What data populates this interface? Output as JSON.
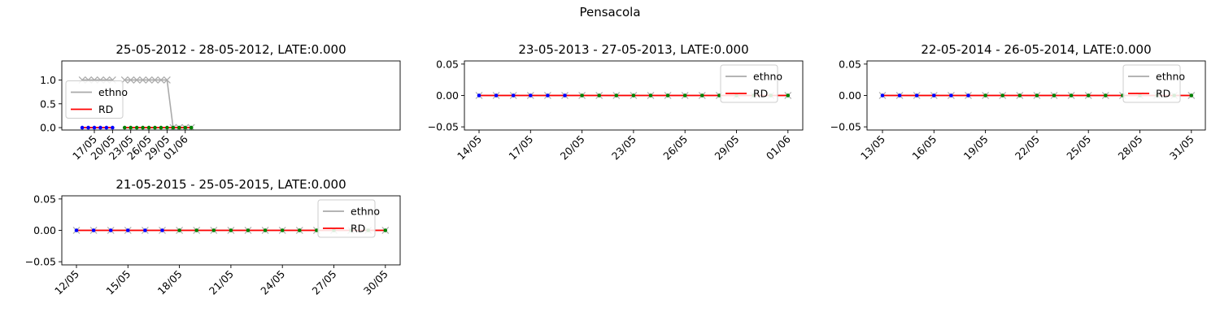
{
  "figure": {
    "title": "Pensacola"
  },
  "chart_data": [
    {
      "type": "line",
      "title": "25-05-2012 - 28-05-2012, LATE:0.000",
      "x_tick_labels": [
        "17/05",
        "20/05",
        "23/05",
        "26/05",
        "29/05",
        "01/06"
      ],
      "y_tick_labels": [
        "0.0",
        "0.5",
        "1.0"
      ],
      "ylim": [
        -0.05,
        1.4
      ],
      "legend": {
        "placement": "center-left",
        "entries": [
          {
            "label": "ethno",
            "color": "#aaaaaa"
          },
          {
            "label": "RD",
            "color": "#ff0000"
          }
        ]
      },
      "series": [
        {
          "name": "ethno",
          "color": "#aaaaaa",
          "marker": "x",
          "x": [
            "15/05",
            "16/05",
            "17/05",
            "18/05",
            "19/05",
            "20/05",
            "22/05",
            "23/05",
            "24/05",
            "25/05",
            "26/05",
            "27/05",
            "28/05",
            "29/05",
            "30/05",
            "31/05",
            "01/06",
            "02/06"
          ],
          "y": [
            1,
            1,
            1,
            1,
            1,
            1,
            1,
            1,
            1,
            1,
            1,
            1,
            1,
            1,
            0,
            0,
            0,
            0
          ]
        },
        {
          "name": "RD",
          "color": "#ff0000",
          "marker": "dot",
          "x": [
            "15/05",
            "16/05",
            "17/05",
            "18/05",
            "19/05",
            "20/05",
            "22/05",
            "23/05",
            "24/05",
            "25/05",
            "26/05",
            "27/05",
            "28/05",
            "29/05",
            "30/05",
            "31/05",
            "01/06",
            "02/06"
          ],
          "y": [
            0,
            0,
            0,
            0,
            0,
            0,
            0,
            0,
            0,
            0,
            0,
            0,
            0,
            0,
            0,
            0,
            0,
            0
          ]
        }
      ]
    },
    {
      "type": "line",
      "title": "23-05-2013 - 27-05-2013, LATE:0.000",
      "x_tick_labels": [
        "14/05",
        "17/05",
        "20/05",
        "23/05",
        "26/05",
        "29/05",
        "01/06"
      ],
      "y_tick_labels": [
        "−0.05",
        "0.00",
        "0.05"
      ],
      "ylim": [
        -0.055,
        0.055
      ],
      "legend": {
        "placement": "upper-right",
        "entries": [
          {
            "label": "ethno",
            "color": "#aaaaaa"
          },
          {
            "label": "RD",
            "color": "#ff0000"
          }
        ]
      },
      "series": [
        {
          "name": "ethno",
          "color": "#aaaaaa",
          "marker": "x",
          "x": [
            "14/05",
            "15/05",
            "16/05",
            "17/05",
            "18/05",
            "19/05",
            "20/05",
            "21/05",
            "22/05",
            "23/05",
            "24/05",
            "25/05",
            "26/05",
            "27/05",
            "28/05",
            "29/05",
            "30/05",
            "31/05",
            "01/06"
          ],
          "y": [
            0,
            0,
            0,
            0,
            0,
            0,
            0,
            0,
            0,
            0,
            0,
            0,
            0,
            0,
            0,
            0,
            0,
            0,
            0
          ]
        },
        {
          "name": "RD",
          "color": "#ff0000",
          "marker": "dot",
          "x": [
            "14/05",
            "15/05",
            "16/05",
            "17/05",
            "18/05",
            "19/05",
            "20/05",
            "21/05",
            "22/05",
            "23/05",
            "24/05",
            "25/05",
            "26/05",
            "27/05",
            "28/05",
            "29/05",
            "30/05",
            "31/05",
            "01/06"
          ],
          "y": [
            0,
            0,
            0,
            0,
            0,
            0,
            0,
            0,
            0,
            0,
            0,
            0,
            0,
            0,
            0,
            0,
            0,
            0,
            0
          ]
        }
      ]
    },
    {
      "type": "line",
      "title": "22-05-2014 - 26-05-2014, LATE:0.000",
      "x_tick_labels": [
        "13/05",
        "16/05",
        "19/05",
        "22/05",
        "25/05",
        "28/05",
        "31/05"
      ],
      "y_tick_labels": [
        "−0.05",
        "0.00",
        "0.05"
      ],
      "ylim": [
        -0.055,
        0.055
      ],
      "legend": {
        "placement": "upper-right",
        "entries": [
          {
            "label": "ethno",
            "color": "#aaaaaa"
          },
          {
            "label": "RD",
            "color": "#ff0000"
          }
        ]
      },
      "series": [
        {
          "name": "ethno",
          "color": "#aaaaaa",
          "marker": "x",
          "x": [
            "13/05",
            "14/05",
            "15/05",
            "16/05",
            "17/05",
            "18/05",
            "19/05",
            "20/05",
            "21/05",
            "22/05",
            "23/05",
            "24/05",
            "25/05",
            "26/05",
            "27/05",
            "28/05",
            "29/05",
            "30/05",
            "31/05"
          ],
          "y": [
            0,
            0,
            0,
            0,
            0,
            0,
            0,
            0,
            0,
            0,
            0,
            0,
            0,
            0,
            0,
            0,
            0,
            0,
            0
          ]
        },
        {
          "name": "RD",
          "color": "#ff0000",
          "marker": "dot",
          "x": [
            "13/05",
            "14/05",
            "15/05",
            "16/05",
            "17/05",
            "18/05",
            "19/05",
            "20/05",
            "21/05",
            "22/05",
            "23/05",
            "24/05",
            "25/05",
            "26/05",
            "27/05",
            "28/05",
            "29/05",
            "30/05",
            "31/05"
          ],
          "y": [
            0,
            0,
            0,
            0,
            0,
            0,
            0,
            0,
            0,
            0,
            0,
            0,
            0,
            0,
            0,
            0,
            0,
            0,
            0
          ]
        }
      ]
    },
    {
      "type": "line",
      "title": "21-05-2015 - 25-05-2015, LATE:0.000",
      "x_tick_labels": [
        "12/05",
        "15/05",
        "18/05",
        "21/05",
        "24/05",
        "27/05",
        "30/05"
      ],
      "y_tick_labels": [
        "−0.05",
        "0.00",
        "0.05"
      ],
      "ylim": [
        -0.055,
        0.055
      ],
      "legend": {
        "placement": "upper-right",
        "entries": [
          {
            "label": "ethno",
            "color": "#aaaaaa"
          },
          {
            "label": "RD",
            "color": "#ff0000"
          }
        ]
      },
      "series": [
        {
          "name": "ethno",
          "color": "#aaaaaa",
          "marker": "x",
          "x": [
            "12/05",
            "13/05",
            "14/05",
            "15/05",
            "16/05",
            "17/05",
            "18/05",
            "19/05",
            "20/05",
            "21/05",
            "22/05",
            "23/05",
            "24/05",
            "25/05",
            "26/05",
            "27/05",
            "28/05",
            "29/05",
            "30/05"
          ],
          "y": [
            0,
            0,
            0,
            0,
            0,
            0,
            0,
            0,
            0,
            0,
            0,
            0,
            0,
            0,
            0,
            0,
            0,
            0,
            0
          ]
        },
        {
          "name": "RD",
          "color": "#ff0000",
          "marker": "dot",
          "x": [
            "12/05",
            "13/05",
            "14/05",
            "15/05",
            "16/05",
            "17/05",
            "18/05",
            "19/05",
            "20/05",
            "21/05",
            "22/05",
            "23/05",
            "24/05",
            "25/05",
            "26/05",
            "27/05",
            "28/05",
            "29/05",
            "30/05"
          ],
          "y": [
            0,
            0,
            0,
            0,
            0,
            0,
            0,
            0,
            0,
            0,
            0,
            0,
            0,
            0,
            0,
            0,
            0,
            0,
            0
          ]
        }
      ]
    }
  ]
}
